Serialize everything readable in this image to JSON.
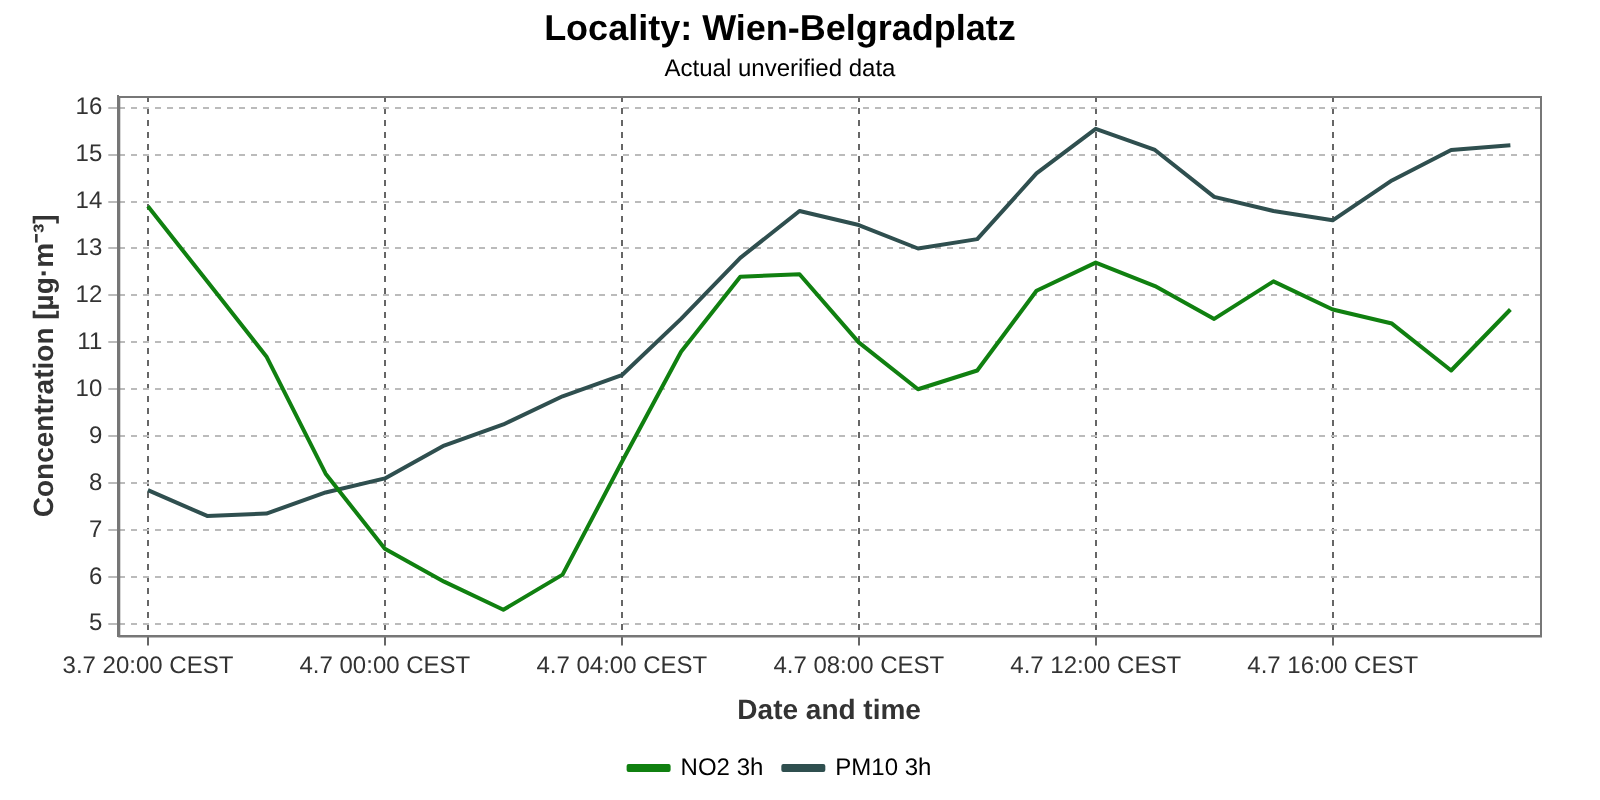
{
  "chart_data": {
    "type": "line",
    "title": "Locality: Wien-Belgradplatz",
    "subtitle": "Actual unverified data",
    "xlabel": "Date and time",
    "ylabel": "Concentration [µg·m⁻³]",
    "categories": [
      "3.7 20:00 CEST",
      null,
      null,
      null,
      "4.7 00:00 CEST",
      null,
      null,
      null,
      "4.7 04:00 CEST",
      null,
      null,
      null,
      "4.7 08:00 CEST",
      null,
      null,
      null,
      "4.7 12:00 CEST",
      null,
      null,
      null,
      "4.7 16:00 CEST",
      null,
      null,
      null
    ],
    "series": [
      {
        "name": "NO2 3h",
        "color": "#108010",
        "values": [
          13.9,
          12.3,
          10.7,
          8.2,
          6.6,
          5.9,
          5.3,
          6.05,
          8.45,
          10.8,
          12.4,
          12.45,
          11.0,
          10.0,
          10.4,
          12.1,
          12.7,
          12.2,
          11.5,
          12.3,
          11.7,
          11.4,
          10.4,
          11.7
        ]
      },
      {
        "name": "PM10 3h",
        "color": "#2f4f4f",
        "values": [
          7.85,
          7.3,
          7.35,
          7.8,
          8.1,
          8.8,
          9.25,
          9.85,
          10.3,
          11.5,
          12.8,
          13.8,
          13.5,
          13.0,
          13.2,
          14.6,
          15.55,
          15.1,
          14.1,
          13.8,
          13.6,
          14.45,
          15.1,
          15.2
        ]
      }
    ],
    "ylim": [
      4.75,
      16.25
    ],
    "yticks": [
      5,
      6,
      7,
      8,
      9,
      10,
      11,
      12,
      13,
      14,
      15,
      16
    ],
    "grid": true,
    "legend": "bottom",
    "marker": "none",
    "line_style": "solid"
  }
}
